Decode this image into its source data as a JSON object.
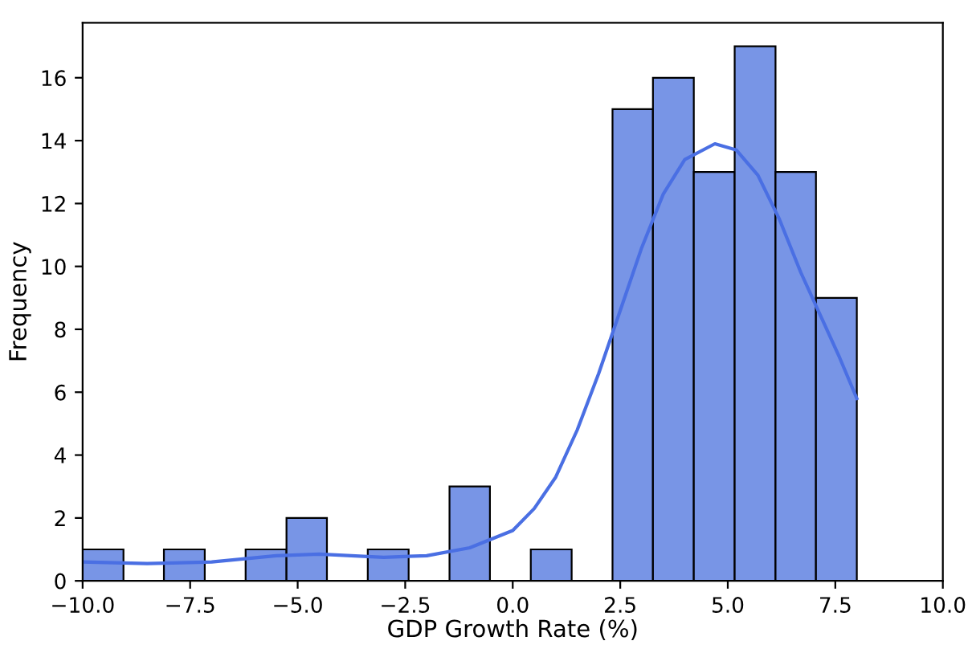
{
  "chart_data": {
    "type": "histogram",
    "xlabel": "GDP Growth Rate (%)",
    "ylabel": "Frequency",
    "bins": [
      -10,
      -9.05,
      -8.11,
      -7.16,
      -6.21,
      -5.26,
      -4.32,
      -3.37,
      -2.42,
      -1.47,
      -0.53,
      0.42,
      1.37,
      2.32,
      3.26,
      4.21,
      5.16,
      6.11,
      7.05,
      8.0
    ],
    "values": [
      1,
      0,
      1,
      0,
      1,
      2,
      0,
      1,
      0,
      3,
      0,
      1,
      0,
      15,
      16,
      13,
      17,
      13,
      9
    ],
    "color": "#7895e6",
    "series": [
      {
        "type": "line",
        "color": "#4a6fe3",
        "x": [
          -10,
          -8.5,
          -7,
          -5.5,
          -4.5,
          -3,
          -2,
          -1,
          0,
          0.5,
          1,
          1.5,
          2,
          2.5,
          3,
          3.5,
          4,
          4.7,
          5.2,
          5.7,
          6.2,
          6.7,
          7.2,
          7.6,
          8
        ],
        "values": [
          0.6,
          0.55,
          0.6,
          0.8,
          0.85,
          0.75,
          0.8,
          1.05,
          1.6,
          2.3,
          3.3,
          4.8,
          6.6,
          8.6,
          10.6,
          12.3,
          13.4,
          13.9,
          13.7,
          12.9,
          11.5,
          9.8,
          8.3,
          7.1,
          5.8
        ]
      }
    ],
    "xlim": [
      -10,
      10
    ],
    "xticks": [
      {
        "value": -10,
        "label": "−10.0"
      },
      {
        "value": -7.5,
        "label": "−7.5"
      },
      {
        "value": -5,
        "label": "−5.0"
      },
      {
        "value": -2.5,
        "label": "−2.5"
      },
      {
        "value": 0,
        "label": "0.0"
      },
      {
        "value": 2.5,
        "label": "2.5"
      },
      {
        "value": 5,
        "label": "5.0"
      },
      {
        "value": 7.5,
        "label": "7.5"
      },
      {
        "value": 10,
        "label": "10.0"
      }
    ],
    "ylim": [
      0,
      17.75
    ],
    "yticks": [
      0,
      2,
      4,
      6,
      8,
      10,
      12,
      14,
      16
    ],
    "grid": false
  }
}
